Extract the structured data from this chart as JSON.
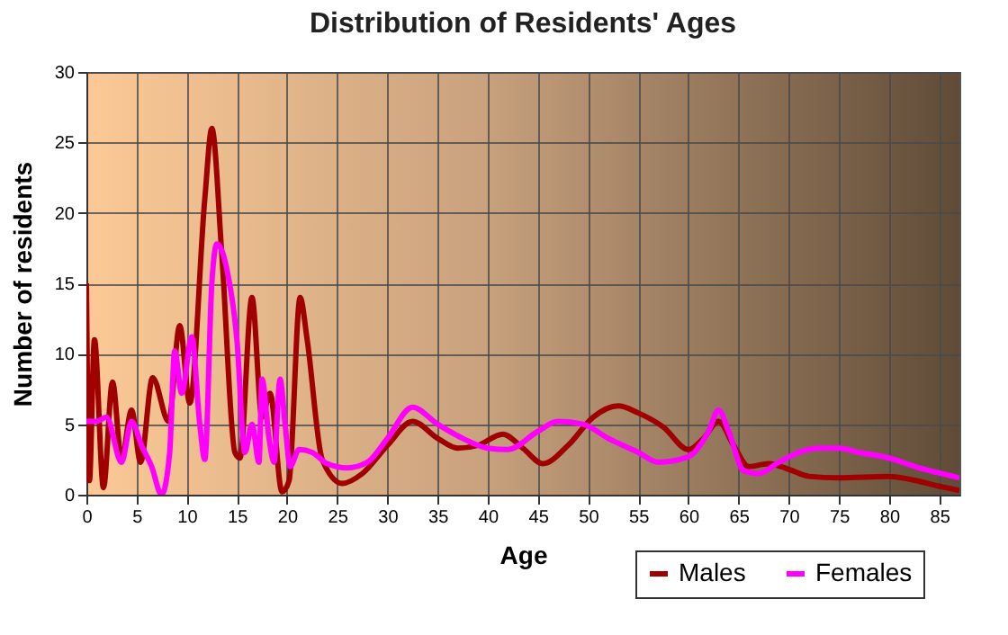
{
  "chart_data": {
    "type": "line",
    "title": "Distribution of Residents' Ages",
    "xlabel": "Age",
    "ylabel": "Number of residents",
    "xlim": [
      0,
      87
    ],
    "xticks": [
      0,
      5,
      10,
      15,
      20,
      25,
      30,
      35,
      40,
      45,
      50,
      55,
      60,
      65,
      70,
      75,
      80,
      85
    ],
    "ylim": [
      0,
      30
    ],
    "yticks": [
      0,
      5,
      10,
      15,
      20,
      25,
      30
    ],
    "grid": true,
    "legend": "bottom right",
    "marker": "none",
    "line_style": "solid",
    "series": [
      {
        "name": "Males",
        "color": "#a00000",
        "x": [
          0,
          0.3,
          0.8,
          1.7,
          2.6,
          3.5,
          4.5,
          5.4,
          6.6,
          8.2,
          9.3,
          10.3,
          11.8,
          12.5,
          13.5,
          14.8,
          15.3,
          16.5,
          17.5,
          18.3,
          19.5,
          20.2,
          21.3,
          22,
          23.5,
          25.5,
          27.5,
          30,
          32.5,
          35,
          37,
          39,
          41.5,
          43.5,
          45.5,
          48,
          50.5,
          53,
          55,
          57.5,
          60,
          61.5,
          63,
          64.5,
          66,
          68,
          70,
          72,
          75,
          80,
          82,
          85,
          87
        ],
        "values": [
          15,
          1,
          11,
          0.5,
          8,
          2.5,
          6,
          2.3,
          8.3,
          5.2,
          12,
          6.5,
          21,
          26,
          17,
          3,
          2.6,
          14,
          5.5,
          7.2,
          0.2,
          1,
          14,
          11,
          2.5,
          0.8,
          1.5,
          3.5,
          5.2,
          4,
          3.3,
          3.5,
          4.3,
          3.3,
          2.2,
          3.5,
          5.5,
          6.3,
          5.8,
          4.8,
          3.2,
          4,
          5.2,
          3.5,
          2,
          2.2,
          1.8,
          1.3,
          1.2,
          1.3,
          1.1,
          0.6,
          0.3
        ]
      },
      {
        "name": "Females",
        "color": "#ff00ff",
        "x": [
          0,
          1,
          2,
          3.5,
          4.5,
          5.5,
          6.5,
          7.5,
          8.3,
          8.8,
          9.5,
          10.5,
          11.3,
          11.8,
          12.5,
          13,
          14,
          15,
          15.8,
          16.5,
          17.2,
          17.5,
          18.2,
          18.7,
          19.3,
          19.8,
          20.3,
          21.2,
          22.5,
          24,
          26,
          28,
          30,
          32.5,
          35,
          37.5,
          40,
          42,
          45,
          47,
          49.5,
          52,
          55,
          57,
          60,
          62,
          63,
          64,
          65.5,
          67,
          69,
          71,
          73,
          75,
          77,
          80,
          83,
          87
        ],
        "values": [
          5.2,
          5.2,
          5.5,
          2.3,
          5.2,
          3.5,
          2,
          0,
          3,
          10.2,
          7.2,
          11.2,
          5,
          2.5,
          15,
          17.8,
          16,
          11,
          3,
          5,
          2.3,
          8.2,
          4,
          2.3,
          8.2,
          5,
          2,
          3.2,
          3,
          2.2,
          1.9,
          2.3,
          4,
          6.2,
          5,
          4,
          3.3,
          3.2,
          4.5,
          5.2,
          5,
          4,
          3,
          2.3,
          2.7,
          4.5,
          6,
          4.5,
          1.7,
          1.5,
          2.3,
          3,
          3.3,
          3.3,
          3,
          2.6,
          1.9,
          1.2
        ]
      }
    ]
  }
}
